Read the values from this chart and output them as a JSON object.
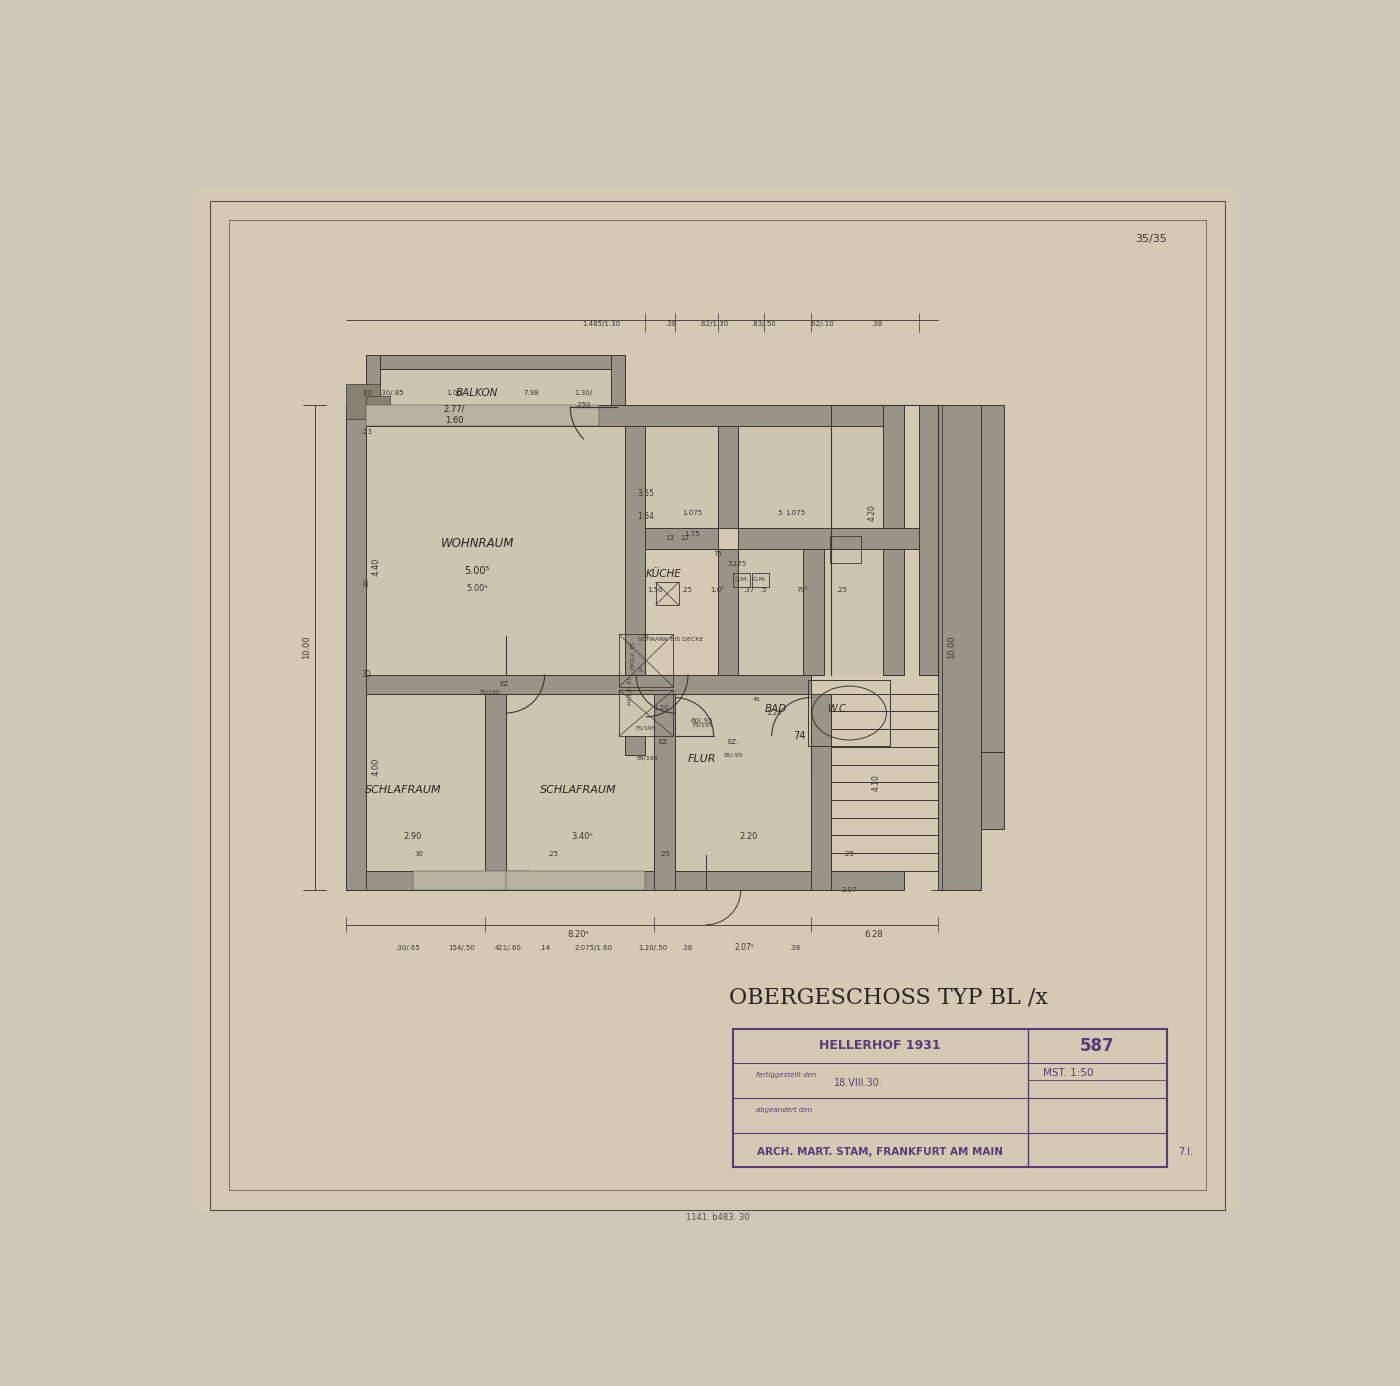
{
  "bg_color": "#cfc8b8",
  "paper_color": "#d8d0be",
  "line_color": "#3a3530",
  "wall_fill": "#8a8478",
  "wall_hatch": "#5a5248",
  "title": "OBERGESCHOSS TYP BL /x",
  "subtitle_main": "HELLERHOF 1931",
  "subtitle_num": "587",
  "subtitle_date_label": "fertiggestellt den",
  "subtitle_date": "18.VIII.30.",
  "subtitle_abgen_label": "abgeandert den",
  "subtitle_scale_label": "MST. 1:50",
  "subtitle_arch": "ARCH. MART. STAM, FRANKFURT AM MAIN",
  "subtitle_num2": "7.l.",
  "stamp_color": "#5a3a7a",
  "dim_color": "#3a3530",
  "page_num": "35/35",
  "bottom_ref": "1141. b483. 30"
}
